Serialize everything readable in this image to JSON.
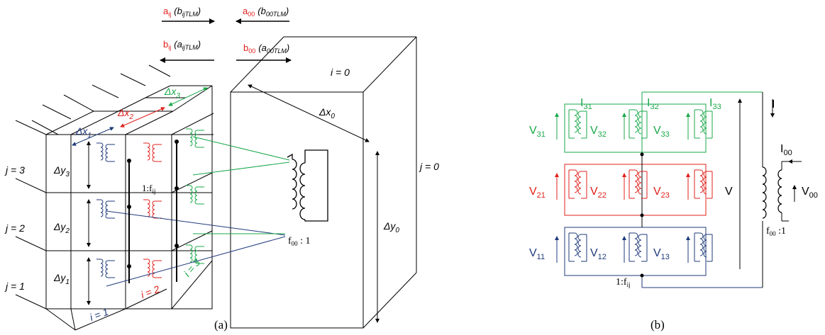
{
  "colors": {
    "black": "#000000",
    "blue": "#1f3a7a",
    "red": "#e0201b",
    "green": "#1aa84a"
  },
  "wave_labels": {
    "a_ij": "a",
    "a_ij_sub": "ij",
    "a_ij_paren": "(b",
    "a_ij_paren_sub": "ijTLM",
    "a_ij_close": ")",
    "a_00": "a",
    "a_00_sub": "00",
    "a_00_paren": "(b",
    "a_00_paren_sub": "00TLM",
    "a_00_close": ")",
    "b_ij": "b",
    "b_ij_sub": "ij",
    "b_ij_paren": "(a",
    "b_ij_paren_sub": "ijTLM",
    "b_ij_close": ")",
    "b_00": "b",
    "b_00_sub": "00",
    "b_00_paren": "(a",
    "b_00_paren_sub": "00TLM",
    "b_00_close": ")"
  },
  "panel_a": {
    "caption": "(a)",
    "j_labels": [
      "j = 3",
      "j = 2",
      "j = 1"
    ],
    "j0_label": "j = 0",
    "i0_label": "i = 0",
    "i_labels": [
      "i = 1",
      "i = 2",
      "i = 3"
    ],
    "dy_labels": [
      "Δy",
      "Δy",
      "Δy"
    ],
    "dy_subs": [
      "3",
      "2",
      "1"
    ],
    "dx_labels": [
      "Δx",
      "Δx",
      "Δx"
    ],
    "dx_subs": [
      "1",
      "2",
      "3"
    ],
    "dx0": "Δx",
    "dx0_sub": "0",
    "dy0": "Δy",
    "dy0_sub": "0",
    "ratio_ij": "1:f",
    "ratio_ij_sub": "ij",
    "ratio_00": "f",
    "ratio_00_sub": "00",
    "ratio_00_tail": " : 1"
  },
  "panel_b": {
    "caption": "(b)",
    "v_labels": [
      {
        "t": "V",
        "s": "31"
      },
      {
        "t": "V",
        "s": "32"
      },
      {
        "t": "V",
        "s": "33"
      },
      {
        "t": "V",
        "s": "21"
      },
      {
        "t": "V",
        "s": "22"
      },
      {
        "t": "V",
        "s": "23"
      },
      {
        "t": "V",
        "s": "11"
      },
      {
        "t": "V",
        "s": "12"
      },
      {
        "t": "V",
        "s": "13"
      }
    ],
    "i_labels": [
      {
        "t": "I",
        "s": "31"
      },
      {
        "t": "I",
        "s": "32"
      },
      {
        "t": "I",
        "s": "33"
      }
    ],
    "I": "I",
    "V": "V",
    "I00": "I",
    "I00_sub": "00",
    "V00": "V",
    "V00_sub": "00",
    "ratio_ij": "1:f",
    "ratio_ij_sub": "ij",
    "ratio_00": "f",
    "ratio_00_sub": "00",
    "ratio_00_tail": " :1"
  }
}
